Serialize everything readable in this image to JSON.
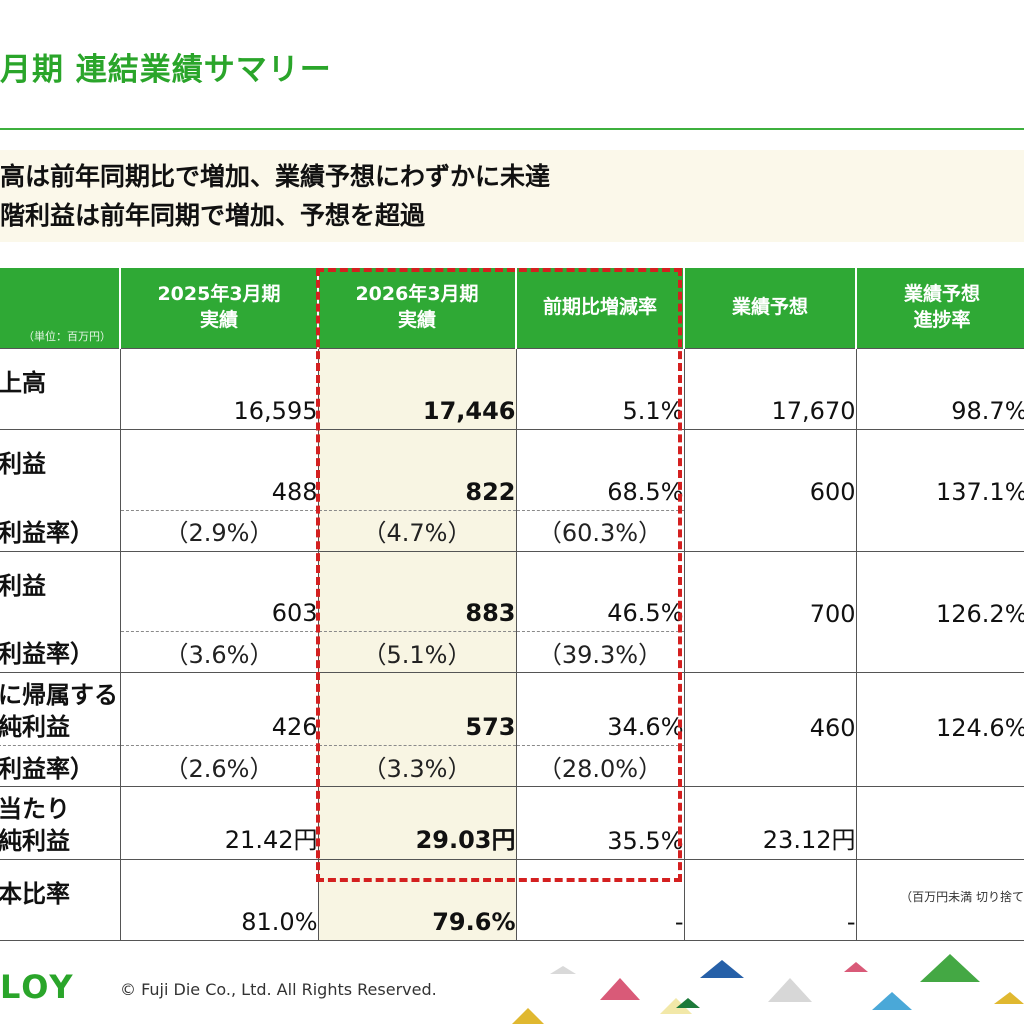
{
  "page": {
    "title": "月期 連結業績サマリー",
    "summary_line1": "高は前年同期比で増加、業績予想にわずかに未達",
    "summary_line2": "階利益は前年同期で増加、予想を超過"
  },
  "table": {
    "unit_note": "（単位：百万円）",
    "headers": {
      "prev": "2025年3月期\n実績",
      "curr": "2026年3月期\n実績",
      "change": "前期比増減率",
      "forecast": "業績予想",
      "progress": "業績予想\n進捗率"
    },
    "rows": {
      "sales": {
        "label": "上高",
        "prev": "16,595",
        "curr": "17,446",
        "change": "5.1%",
        "forecast": "17,670",
        "progress": "98.7%"
      },
      "op": {
        "label": "利益",
        "prev": "488",
        "curr": "822",
        "change": "68.5%",
        "forecast": "600",
        "progress": "137.1%"
      },
      "op_rate": {
        "label": "利益率）",
        "prev": "（2.9%）",
        "curr": "（4.7%）",
        "change": "（60.3%）"
      },
      "ord": {
        "label": "利益",
        "prev": "603",
        "curr": "883",
        "change": "46.5%",
        "forecast": "700",
        "progress": "126.2%"
      },
      "ord_rate": {
        "label": "利益率）",
        "prev": "（3.6%）",
        "curr": "（5.1%）",
        "change": "（39.3%）"
      },
      "net": {
        "label_line1": "に帰属する",
        "label_line2": "純利益",
        "prev": "426",
        "curr": "573",
        "change": "34.6%",
        "forecast": "460",
        "progress": "124.6%"
      },
      "net_rate": {
        "label": "利益率）",
        "prev": "（2.6%）",
        "curr": "（3.3%）",
        "change": "（28.0%）"
      },
      "eps": {
        "label_line1": "当たり",
        "label_line2": "純利益",
        "prev": "21.42円",
        "curr": "29.03円",
        "change": "35.5%",
        "forecast": "23.12円",
        "progress": ""
      },
      "equity": {
        "label": "本比率",
        "prev": "81.0%",
        "curr": "79.6%",
        "change": "-",
        "forecast": "-",
        "progress": ""
      }
    },
    "footnote": "（百万円未満 切り捨て"
  },
  "footer": {
    "logo": "LOY",
    "copyright": "© Fuji Die Co., Ltd. All Rights Reserved."
  },
  "colors": {
    "brand_green": "#2fa935",
    "highlight": "#f8f5e3",
    "red_frame": "#d42020"
  }
}
